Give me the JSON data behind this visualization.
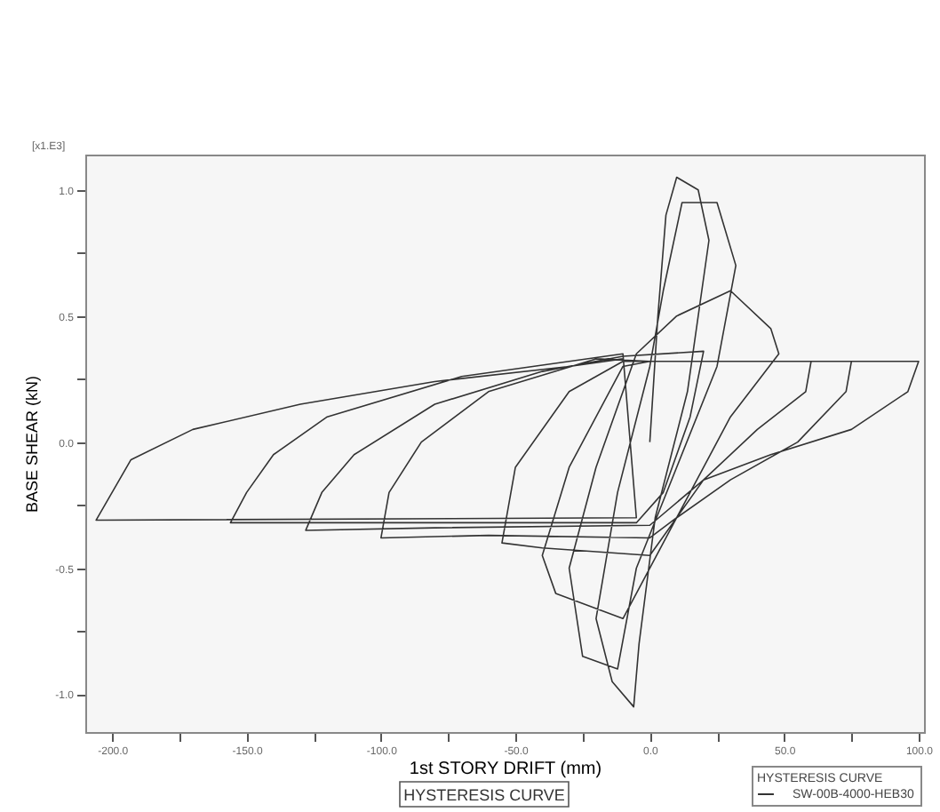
{
  "chart_data": {
    "type": "line",
    "xlabel": "1st STORY DRIFT (mm)",
    "ylabel": "BASE SHEAR (kN)",
    "legend_title": "HYSTERESIS CURVE",
    "annotations": [
      "[x1.E3]",
      "HYSTERESIS CURVE"
    ],
    "xlim": [
      -210,
      102
    ],
    "ylim": [
      -1.15,
      1.14
    ],
    "xticks": [
      {
        "value": -200,
        "label": "-200.0"
      },
      {
        "value": -175,
        "label": null
      },
      {
        "value": -150,
        "label": "-150.0"
      },
      {
        "value": -125,
        "label": null
      },
      {
        "value": -100,
        "label": "-100.0"
      },
      {
        "value": -75,
        "label": null
      },
      {
        "value": -50,
        "label": "-50.0"
      },
      {
        "value": -25,
        "label": null
      },
      {
        "value": 0,
        "label": "0.0"
      },
      {
        "value": 25,
        "label": null
      },
      {
        "value": 50,
        "label": "50.0"
      },
      {
        "value": 75,
        "label": null
      },
      {
        "value": 100,
        "label": "100.0"
      }
    ],
    "yticks": [
      {
        "value": -1,
        "label": "-1.0"
      },
      {
        "value": -0.75,
        "label": null
      },
      {
        "value": -0.5,
        "label": "-0.5"
      },
      {
        "value": -0.25,
        "label": null
      },
      {
        "value": 0,
        "label": "0.0"
      },
      {
        "value": 0.25,
        "label": null
      },
      {
        "value": 0.5,
        "label": "0.5"
      },
      {
        "value": 0.75,
        "label": null
      },
      {
        "value": 1,
        "label": "1.0"
      }
    ],
    "grid": false,
    "legend": "bottom right",
    "marker": "none",
    "line_style": "solid",
    "series": [
      {
        "name": "SW-00B-4000-HEB30",
        "color": "#333333",
        "x": [
          0,
          3,
          6,
          10,
          18,
          22,
          14,
          2,
          -4,
          -6,
          -14,
          -20,
          -12,
          0,
          5,
          12,
          25,
          32,
          25,
          10,
          -5,
          -12,
          -25,
          -30,
          -20,
          -5,
          10,
          30,
          45,
          48,
          30,
          10,
          -10,
          -35,
          -40,
          -30,
          -10,
          0,
          60,
          58,
          40,
          20,
          0,
          -40,
          -55,
          -50,
          -30,
          -10,
          0,
          75,
          73,
          55,
          30,
          10,
          0,
          -60,
          -100,
          -97,
          -85,
          -60,
          -20,
          0,
          100,
          96,
          75,
          45,
          20,
          0,
          -80,
          -128,
          -122,
          -110,
          -80,
          -40,
          -10,
          20,
          15,
          5,
          -5,
          -100,
          -156,
          -150,
          -140,
          -120,
          -70,
          -10,
          -5,
          -206,
          -193,
          -170,
          -130,
          -80,
          -30,
          -10
        ],
        "values": [
          0,
          0.5,
          0.9,
          1.05,
          1.0,
          0.8,
          0.2,
          -0.3,
          -0.8,
          -1.05,
          -0.95,
          -0.7,
          -0.2,
          0.3,
          0.6,
          0.95,
          0.95,
          0.7,
          0.3,
          -0.1,
          -0.5,
          -0.9,
          -0.85,
          -0.5,
          -0.1,
          0.35,
          0.5,
          0.6,
          0.45,
          0.35,
          0.1,
          -0.3,
          -0.7,
          -0.6,
          -0.45,
          -0.1,
          0.3,
          0.32,
          0.32,
          0.2,
          0.05,
          -0.15,
          -0.45,
          -0.42,
          -0.4,
          -0.1,
          0.2,
          0.32,
          0.32,
          0.32,
          0.2,
          0.0,
          -0.15,
          -0.3,
          -0.38,
          -0.37,
          -0.38,
          -0.2,
          0.0,
          0.2,
          0.33,
          0.32,
          0.32,
          0.2,
          0.05,
          -0.05,
          -0.15,
          -0.33,
          -0.34,
          -0.35,
          -0.2,
          -0.05,
          0.15,
          0.28,
          0.34,
          0.36,
          0.1,
          -0.2,
          -0.32,
          -0.32,
          -0.32,
          -0.2,
          -0.05,
          0.1,
          0.26,
          0.35,
          -0.3,
          -0.31,
          -0.07,
          0.05,
          0.15,
          0.24,
          0.3,
          0.33
        ]
      }
    ]
  }
}
